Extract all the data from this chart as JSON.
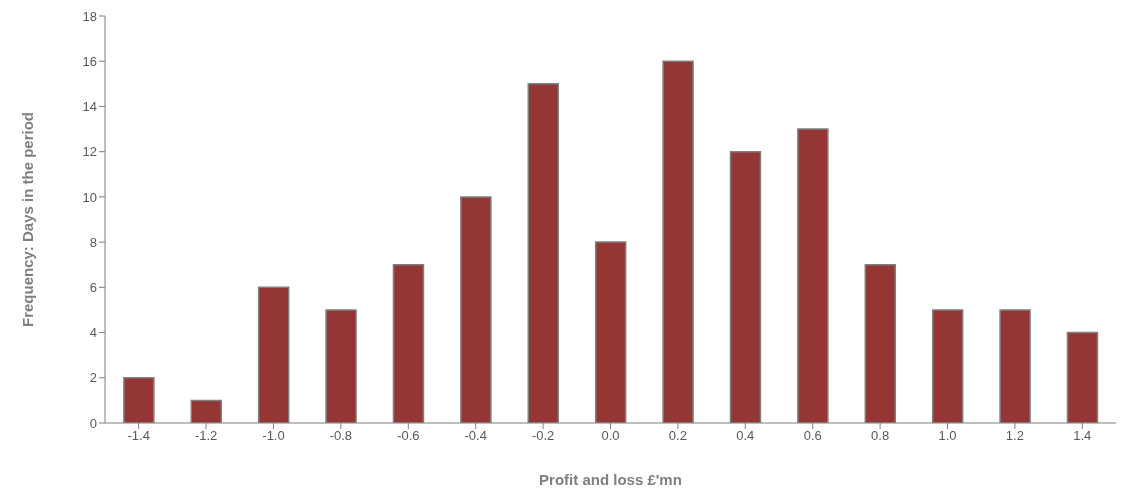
{
  "chart_data": {
    "type": "bar",
    "xlabel": "Profit and loss  £'mn",
    "ylabel": "Frequency: Days in the period",
    "categories": [
      "-1.4",
      "-1.2",
      "-1.0",
      "-0.8",
      "-0.6",
      "-0.4",
      "-0.2",
      "0.0",
      "0.2",
      "0.4",
      "0.6",
      "0.8",
      "1.0",
      "1.2",
      "1.4"
    ],
    "values": [
      2,
      1,
      6,
      5,
      7,
      10,
      15,
      8,
      16,
      12,
      13,
      7,
      5,
      5,
      4
    ],
    "color": "#943634",
    "ylim": [
      0,
      18
    ],
    "yticks": [
      0,
      2,
      4,
      6,
      8,
      10,
      12,
      14,
      16,
      18
    ],
    "grid": false,
    "legend": false
  }
}
